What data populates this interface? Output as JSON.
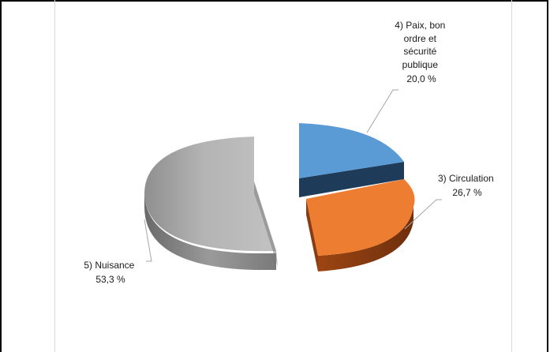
{
  "chart_data": {
    "type": "pie",
    "title": "",
    "slices": [
      {
        "name": "4) Paix, bon ordre et sécurité publique",
        "label_lines": [
          "4) Paix, bon",
          "ordre et",
          "sécurité",
          "publique"
        ],
        "value_label": "20,0 %",
        "value": 20.0,
        "color": "#5b9bd5",
        "side_color": "#1f3b5a"
      },
      {
        "name": "3) Circulation",
        "label_lines": [
          "3) Circulation"
        ],
        "value_label": "26,7 %",
        "value": 26.7,
        "color": "#ed7d31",
        "side_color": "#8a3c10"
      },
      {
        "name": "5) Nuisance",
        "label_lines": [
          "5) Nuisance"
        ],
        "value_label": "53,3 %",
        "value": 53.3,
        "color": "#a5a5a5",
        "side_color": "#6e6e6e"
      }
    ]
  }
}
